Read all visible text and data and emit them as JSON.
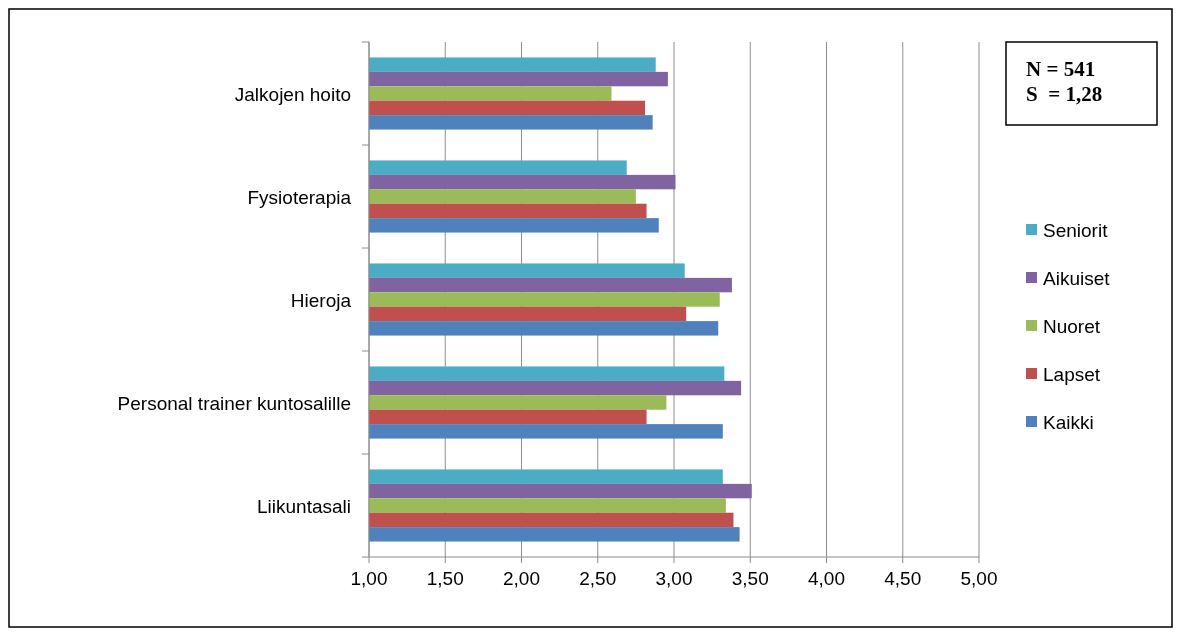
{
  "chart_data": {
    "type": "bar",
    "orientation": "horizontal",
    "categories": [
      "Jalkojen hoito",
      "Fysioterapia",
      "Hieroja",
      "Personal trainer kuntosalille",
      "Liikuntasali"
    ],
    "series": [
      {
        "name": "Seniorit",
        "color": "#4bacc6",
        "values": [
          2.88,
          2.69,
          3.07,
          3.33,
          3.32
        ]
      },
      {
        "name": "Aikuiset",
        "color": "#8064a2",
        "values": [
          2.96,
          3.01,
          3.38,
          3.44,
          3.51
        ]
      },
      {
        "name": "Nuoret",
        "color": "#9bbb59",
        "values": [
          2.59,
          2.75,
          3.3,
          2.95,
          3.34
        ]
      },
      {
        "name": "Lapset",
        "color": "#c0504d",
        "values": [
          2.81,
          2.82,
          3.08,
          2.82,
          3.39
        ]
      },
      {
        "name": "Kaikki",
        "color": "#4f81bd",
        "values": [
          2.86,
          2.9,
          3.29,
          3.32,
          3.43
        ]
      }
    ],
    "xlim": [
      1,
      5
    ],
    "xticks": [
      {
        "value": 1,
        "label": "1,00"
      },
      {
        "value": 1.5,
        "label": "1,50"
      },
      {
        "value": 2,
        "label": "2,00"
      },
      {
        "value": 2.5,
        "label": "2,50"
      },
      {
        "value": 3,
        "label": "3,00"
      },
      {
        "value": 3.5,
        "label": "3,50"
      },
      {
        "value": 4,
        "label": "4,00"
      },
      {
        "value": 4.5,
        "label": "4,50"
      },
      {
        "value": 5,
        "label": "5,00"
      }
    ],
    "grid": "x",
    "legend": "right",
    "annotations": [
      "N = 541",
      "S  = 1,28"
    ]
  }
}
